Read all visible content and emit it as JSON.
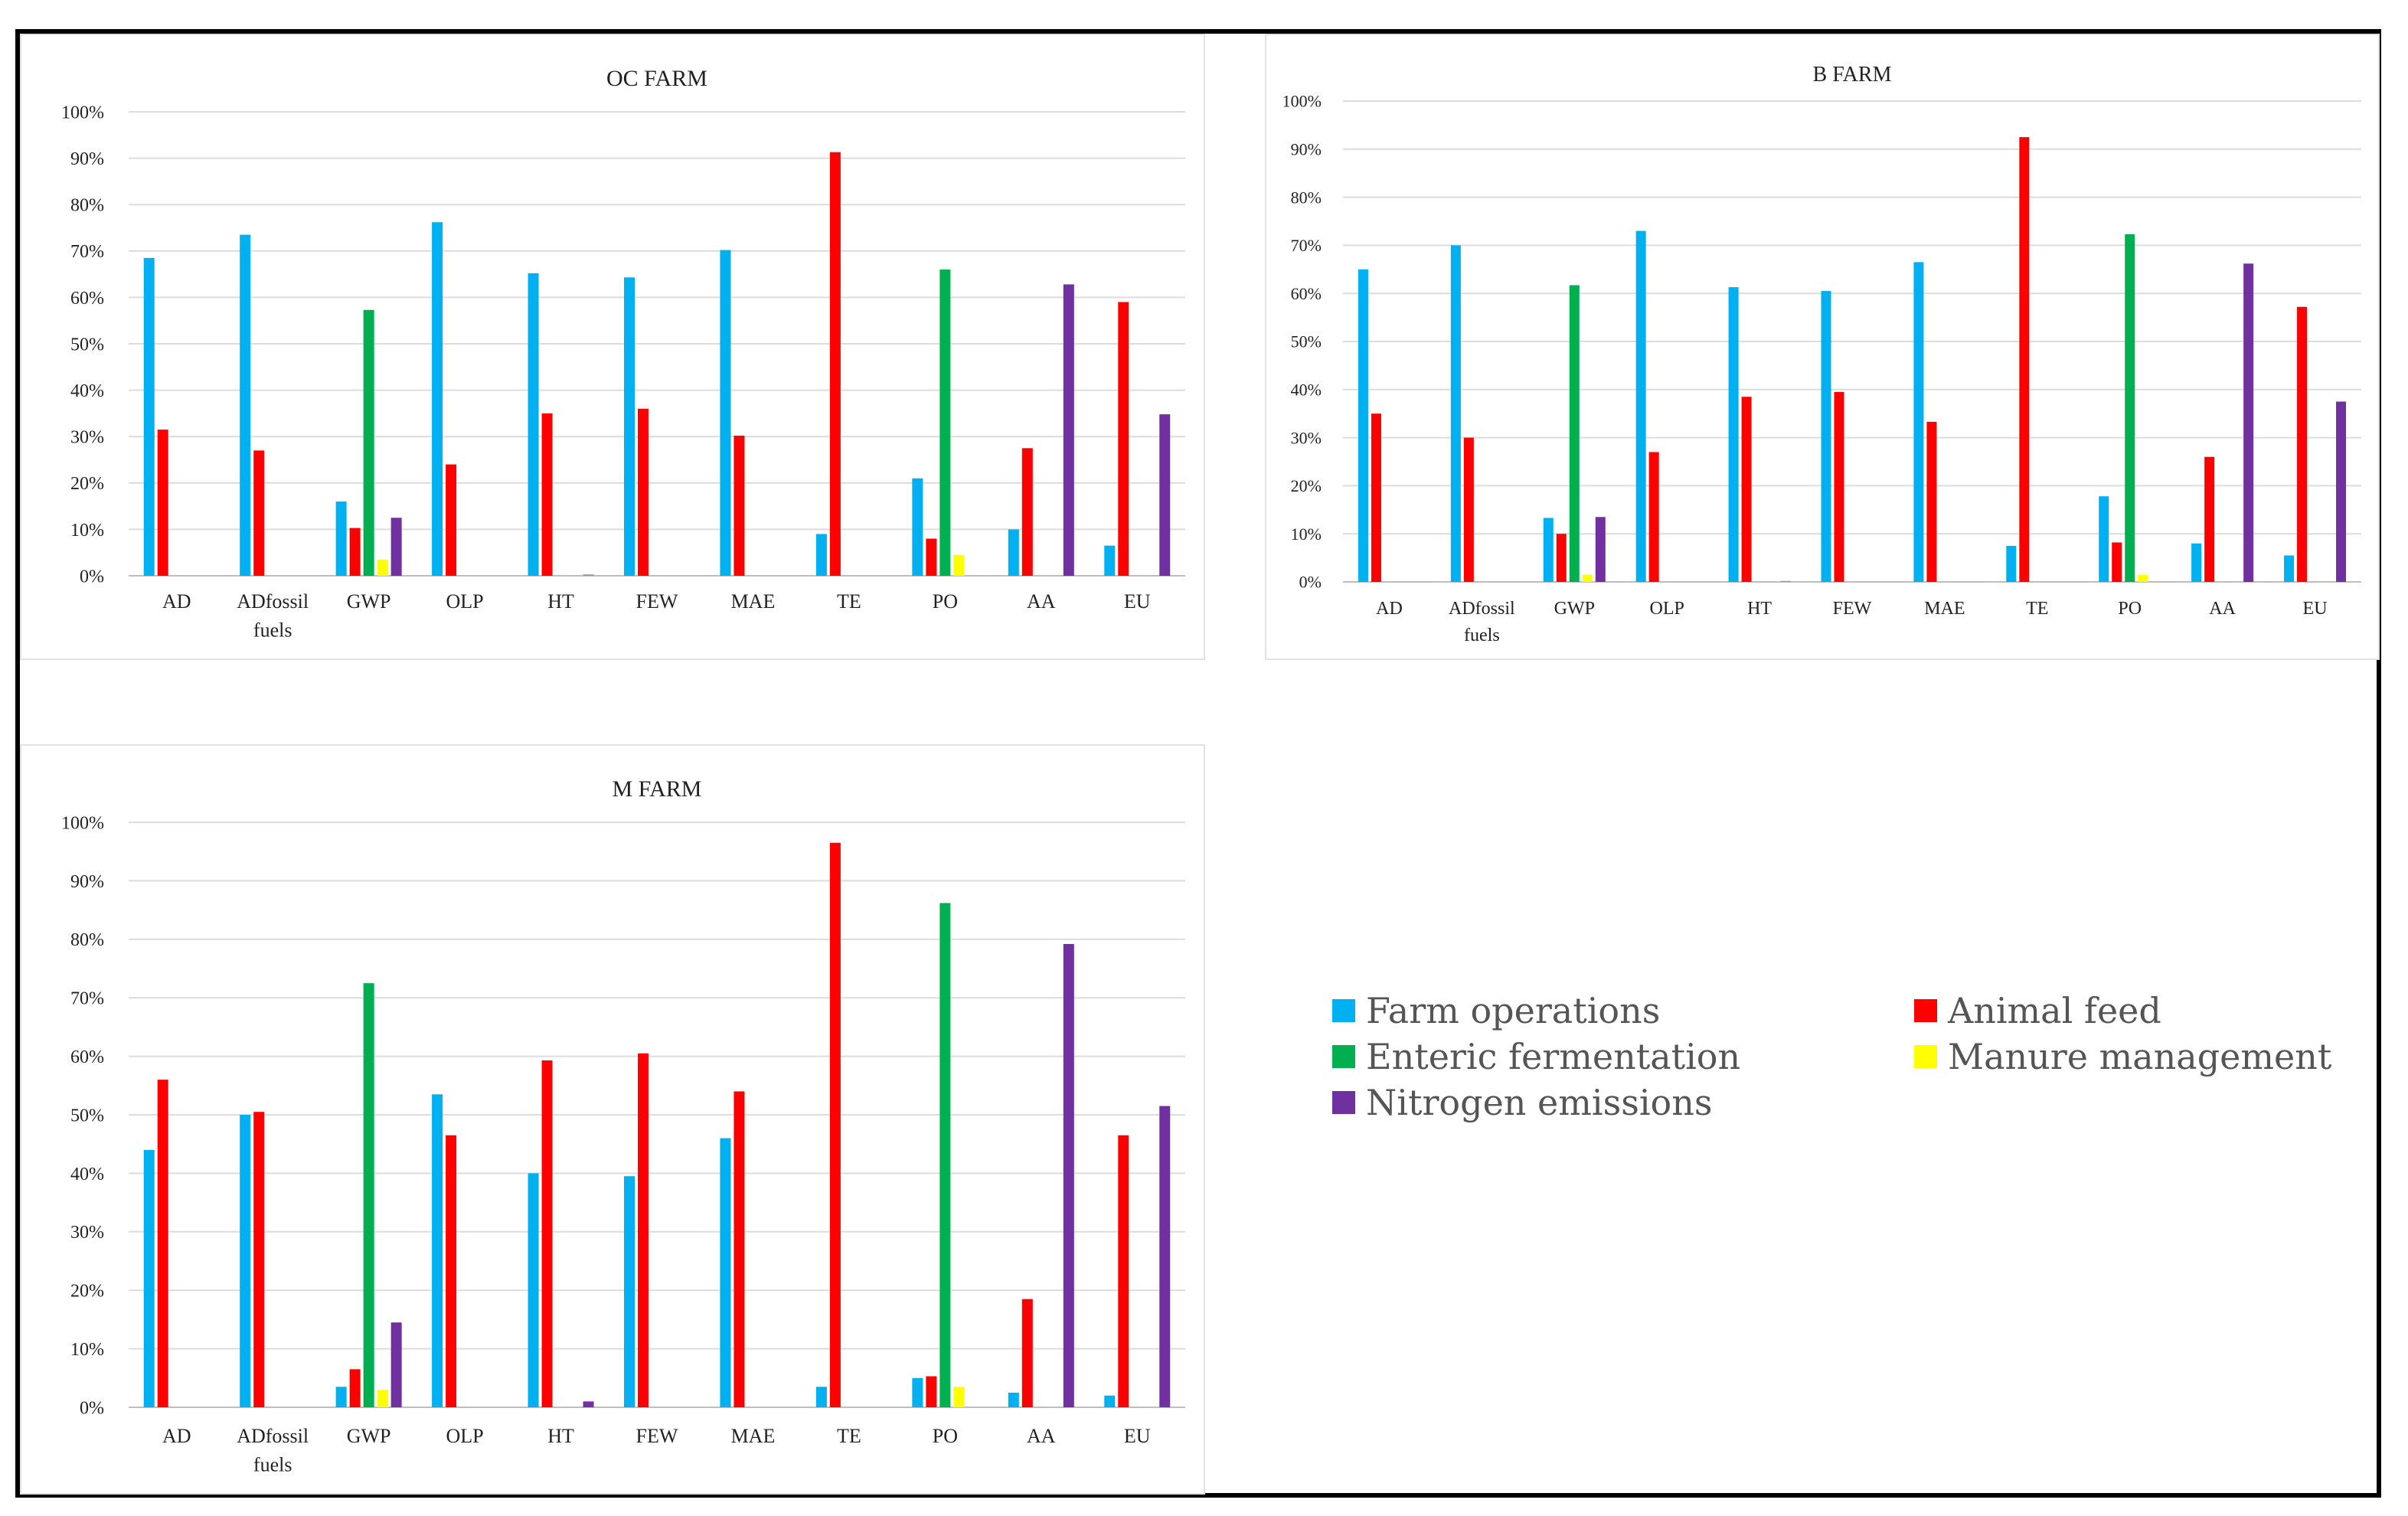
{
  "chart_data": [
    {
      "type": "bar",
      "title": "OC FARM",
      "categories": [
        "AD",
        "ADfossil fuels",
        "GWP",
        "OLP",
        "HT",
        "FEW",
        "MAE",
        "TE",
        "PO",
        "AA",
        "EU"
      ],
      "ylim": [
        0,
        100
      ],
      "yticks": [
        "0%",
        "10%",
        "20%",
        "30%",
        "40%",
        "50%",
        "60%",
        "70%",
        "80%",
        "90%",
        "100%"
      ],
      "series": [
        {
          "name": "Farm operations",
          "values": [
            68.5,
            73.5,
            16,
            76.2,
            65.2,
            64.3,
            70.2,
            9,
            21,
            10,
            6.5
          ]
        },
        {
          "name": "Animal feed",
          "values": [
            31.5,
            27,
            10.3,
            24,
            35,
            36,
            30.2,
            91.3,
            8,
            27.5,
            59
          ]
        },
        {
          "name": "Enteric fermentation",
          "values": [
            0,
            0,
            57.3,
            0,
            0,
            0,
            0,
            0,
            66,
            0,
            0
          ]
        },
        {
          "name": "Manure management",
          "values": [
            0,
            0,
            3.5,
            0,
            0,
            0,
            0,
            0,
            4.5,
            0,
            0
          ]
        },
        {
          "name": "Nitrogen emissions",
          "values": [
            0,
            0,
            12.5,
            0,
            0.3,
            0,
            0,
            0,
            0,
            62.8,
            34.8
          ]
        }
      ]
    },
    {
      "type": "bar",
      "title": "B FARM",
      "categories": [
        "AD",
        "ADfossil fuels",
        "GWP",
        "OLP",
        "HT",
        "FEW",
        "MAE",
        "TE",
        "PO",
        "AA",
        "EU"
      ],
      "ylim": [
        0,
        100
      ],
      "yticks": [
        "0%",
        "10%",
        "20%",
        "30%",
        "40%",
        "50%",
        "60%",
        "70%",
        "80%",
        "90%",
        "100%"
      ],
      "series": [
        {
          "name": "Farm operations",
          "values": [
            65,
            70,
            13.3,
            73,
            61.3,
            60.5,
            66.5,
            7.5,
            17.8,
            8,
            5.5
          ]
        },
        {
          "name": "Animal feed",
          "values": [
            35,
            30,
            10,
            27,
            38.5,
            39.5,
            33.3,
            92.5,
            8.2,
            26,
            57.2
          ]
        },
        {
          "name": "Enteric fermentation",
          "values": [
            0,
            0,
            61.7,
            0,
            0,
            0,
            0,
            0,
            72.3,
            0,
            0
          ]
        },
        {
          "name": "Manure management",
          "values": [
            0,
            0,
            1.5,
            0,
            0,
            0,
            0,
            0,
            1.5,
            0,
            0
          ]
        },
        {
          "name": "Nitrogen emissions",
          "values": [
            0,
            0,
            13.5,
            0,
            0.2,
            0,
            0,
            0,
            0,
            66.2,
            37.5
          ]
        }
      ]
    },
    {
      "type": "bar",
      "title": "M FARM",
      "categories": [
        "AD",
        "ADfossil fuels",
        "GWP",
        "OLP",
        "HT",
        "FEW",
        "MAE",
        "TE",
        "PO",
        "AA",
        "EU"
      ],
      "ylim": [
        0,
        100
      ],
      "yticks": [
        "0%",
        "10%",
        "20%",
        "30%",
        "40%",
        "50%",
        "60%",
        "70%",
        "80%",
        "90%",
        "100%"
      ],
      "series": [
        {
          "name": "Farm operations",
          "values": [
            44,
            50,
            3.5,
            53.5,
            40,
            39.5,
            46,
            3.5,
            5,
            2.5,
            2
          ]
        },
        {
          "name": "Animal feed",
          "values": [
            56,
            50.5,
            6.5,
            46.5,
            59.3,
            60.5,
            54,
            96.5,
            5.3,
            18.5,
            46.5
          ]
        },
        {
          "name": "Enteric fermentation",
          "values": [
            0,
            0,
            72.5,
            0,
            0,
            0,
            0,
            0,
            86.2,
            0,
            0
          ]
        },
        {
          "name": "Manure management",
          "values": [
            0,
            0,
            3,
            0,
            0,
            0,
            0,
            0,
            3.5,
            0,
            0
          ]
        },
        {
          "name": "Nitrogen emissions",
          "values": [
            0,
            0,
            14.5,
            0,
            1,
            0,
            0,
            0,
            0,
            79.2,
            51.5
          ]
        }
      ]
    }
  ],
  "legend": {
    "items": [
      {
        "label": "Farm operations",
        "color": "#00b0f0"
      },
      {
        "label": "Animal feed",
        "color": "#ff0000"
      },
      {
        "label": "Enteric fermentation",
        "color": "#00b050"
      },
      {
        "label": "Manure management",
        "color": "#ffff00"
      },
      {
        "label": "Nitrogen emissions",
        "color": "#7030a0"
      }
    ]
  }
}
